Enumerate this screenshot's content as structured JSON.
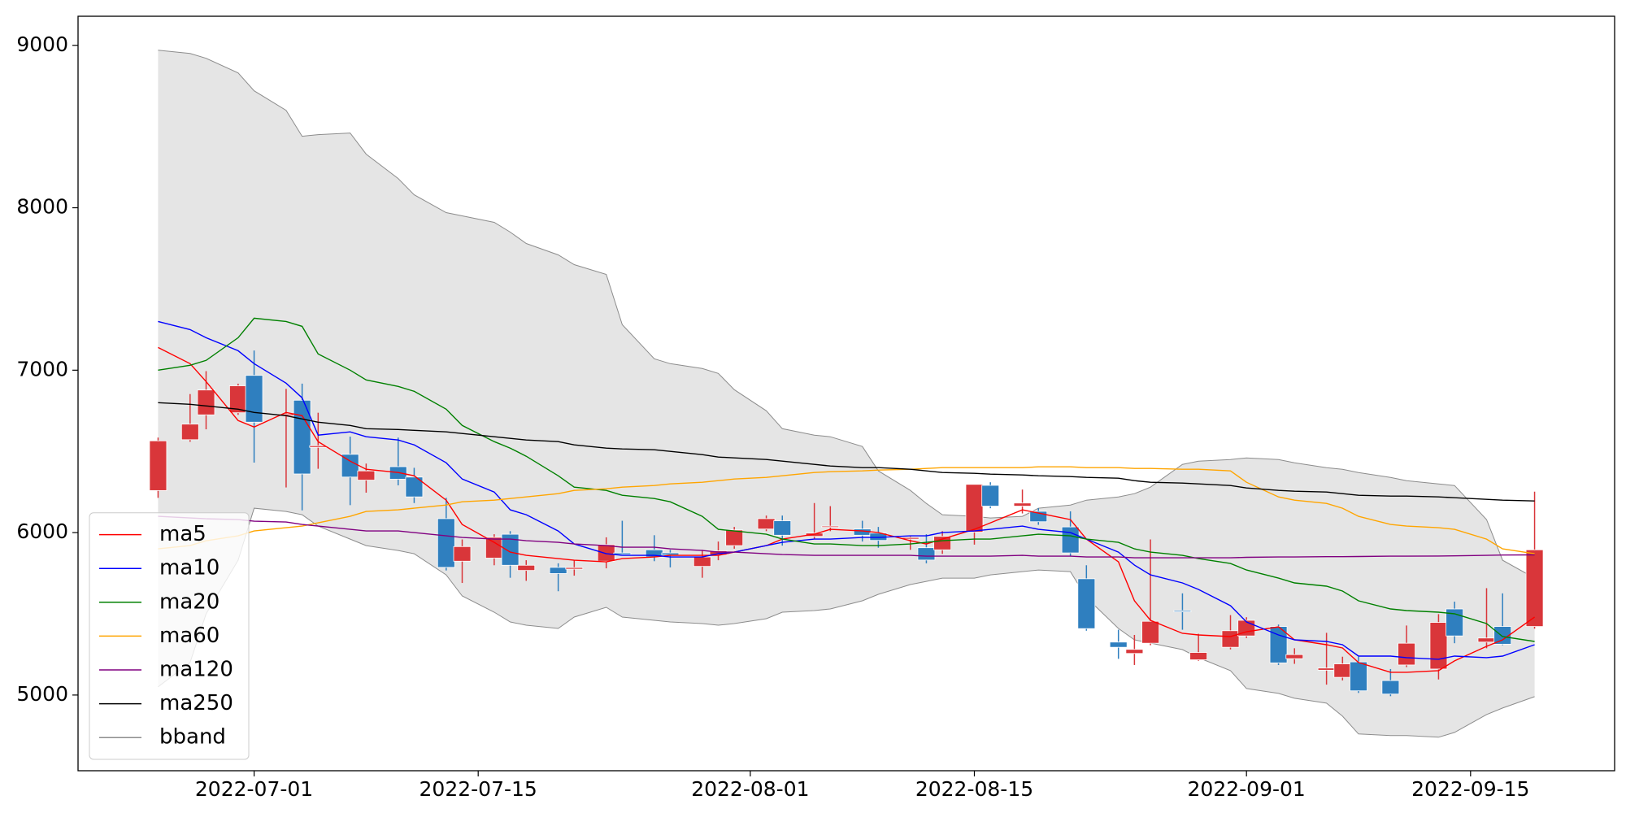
{
  "chart_data": {
    "type": "candlestick",
    "x": [
      "2022-06-25",
      "2022-06-27",
      "2022-06-28",
      "2022-06-30",
      "2022-07-01",
      "2022-07-03",
      "2022-07-04",
      "2022-07-05",
      "2022-07-07",
      "2022-07-08",
      "2022-07-10",
      "2022-07-11",
      "2022-07-13",
      "2022-07-14",
      "2022-07-16",
      "2022-07-17",
      "2022-07-18",
      "2022-07-20",
      "2022-07-21",
      "2022-07-23",
      "2022-07-24",
      "2022-07-26",
      "2022-07-27",
      "2022-07-29",
      "2022-07-30",
      "2022-07-31",
      "2022-08-02",
      "2022-08-03",
      "2022-08-05",
      "2022-08-06",
      "2022-08-08",
      "2022-08-09",
      "2022-08-11",
      "2022-08-12",
      "2022-08-13",
      "2022-08-15",
      "2022-08-16",
      "2022-08-18",
      "2022-08-19",
      "2022-08-21",
      "2022-08-22",
      "2022-08-24",
      "2022-08-25",
      "2022-08-26",
      "2022-08-28",
      "2022-08-29",
      "2022-08-31",
      "2022-09-01",
      "2022-09-03",
      "2022-09-04",
      "2022-09-06",
      "2022-09-07",
      "2022-09-08",
      "2022-09-10",
      "2022-09-11",
      "2022-09-13",
      "2022-09-14",
      "2022-09-16",
      "2022-09-17",
      "2022-09-19"
    ],
    "open": [
      6259,
      6572,
      6725,
      6738,
      6968,
      6720,
      6815,
      6525,
      6482,
      6323,
      6406,
      6342,
      6086,
      5824,
      5843,
      5990,
      5767,
      5786,
      5775,
      5824,
      5875,
      5894,
      5875,
      5792,
      5862,
      5920,
      6022,
      6073,
      5977,
      6035,
      6022,
      5997,
      5960,
      5907,
      5894,
      6003,
      6291,
      6163,
      6131,
      6035,
      5716,
      5326,
      5256,
      5319,
      5520,
      5217,
      5294,
      5364,
      5422,
      5224,
      5153,
      5109,
      5204,
      5089,
      5185,
      5160,
      5530,
      5326,
      5422,
      5422
    ],
    "high": [
      6585,
      6853,
      6994,
      6917,
      7121,
      6885,
      6917,
      6738,
      6591,
      6425,
      6585,
      6399,
      6214,
      5958,
      5990,
      6009,
      5830,
      5811,
      5830,
      5971,
      6073,
      5984,
      5894,
      5894,
      5945,
      6035,
      6105,
      6105,
      6182,
      6163,
      6073,
      6035,
      5977,
      5990,
      6009,
      6297,
      6310,
      6265,
      6150,
      6131,
      5799,
      5402,
      5370,
      5958,
      5626,
      5377,
      5492,
      5479,
      5434,
      5288,
      5383,
      5236,
      5236,
      5160,
      5428,
      5498,
      5575,
      5658,
      5626,
      6252
    ],
    "low": [
      6214,
      6559,
      6636,
      6725,
      6431,
      6278,
      6137,
      6393,
      6169,
      6246,
      6291,
      6182,
      5767,
      5690,
      5799,
      5722,
      5703,
      5639,
      5735,
      5780,
      5862,
      5824,
      5786,
      5722,
      5830,
      5901,
      6009,
      5920,
      5958,
      6009,
      5945,
      5907,
      5894,
      5811,
      5869,
      5926,
      6150,
      6118,
      6048,
      5856,
      5396,
      5223,
      5185,
      5307,
      5402,
      5211,
      5281,
      5351,
      5185,
      5192,
      5064,
      5090,
      5013,
      4993,
      5172,
      5096,
      5319,
      5288,
      5307,
      5409
    ],
    "close": [
      6565,
      6668,
      6878,
      6904,
      6680,
      6730,
      6361,
      6535,
      6342,
      6380,
      6329,
      6220,
      5786,
      5914,
      5971,
      5799,
      5799,
      5748,
      5785,
      5926,
      5865,
      5850,
      5862,
      5850,
      5888,
      6016,
      6086,
      5984,
      5997,
      6040,
      5984,
      5952,
      5970,
      5831,
      5977,
      6297,
      6163,
      6182,
      6067,
      5875,
      5409,
      5294,
      5281,
      5454,
      5517,
      5262,
      5396,
      5460,
      5198,
      5249,
      5166,
      5192,
      5026,
      5006,
      5319,
      5447,
      5364,
      5351,
      5313,
      5894
    ],
    "up_color": "#d9363a",
    "down_color": "#2f7fbf",
    "series": [
      {
        "name": "ma5",
        "color": "#ff0000",
        "values": [
          7140,
          7040,
          6930,
          6690,
          6650,
          6740,
          6720,
          6560,
          6440,
          6390,
          6370,
          6350,
          6200,
          6050,
          5940,
          5880,
          5860,
          5840,
          5830,
          5820,
          5840,
          5850,
          5860,
          5860,
          5860,
          5880,
          5920,
          5960,
          5990,
          6020,
          6010,
          6000,
          5950,
          5930,
          5960,
          6020,
          6060,
          6140,
          6120,
          6080,
          5960,
          5820,
          5580,
          5460,
          5380,
          5370,
          5360,
          5390,
          5420,
          5340,
          5310,
          5290,
          5200,
          5140,
          5140,
          5150,
          5210,
          5300,
          5340,
          5480
        ]
      },
      {
        "name": "ma10",
        "color": "#0000ff",
        "values": [
          7300,
          7250,
          7200,
          7120,
          7040,
          6920,
          6830,
          6600,
          6620,
          6590,
          6570,
          6540,
          6430,
          6330,
          6250,
          6140,
          6110,
          6010,
          5930,
          5870,
          5860,
          5860,
          5850,
          5850,
          5870,
          5880,
          5920,
          5940,
          5960,
          5960,
          5970,
          5970,
          5980,
          5980,
          6000,
          6010,
          6020,
          6040,
          6020,
          6000,
          5960,
          5880,
          5800,
          5740,
          5690,
          5650,
          5550,
          5450,
          5370,
          5340,
          5330,
          5310,
          5240,
          5240,
          5230,
          5220,
          5240,
          5230,
          5240,
          5310
        ]
      },
      {
        "name": "ma20",
        "color": "#008000",
        "values": [
          7000,
          7030,
          7060,
          7200,
          7320,
          7300,
          7270,
          7100,
          7000,
          6940,
          6900,
          6870,
          6760,
          6660,
          6560,
          6520,
          6470,
          6350,
          6280,
          6260,
          6230,
          6210,
          6190,
          6100,
          6020,
          6010,
          5990,
          5960,
          5930,
          5930,
          5920,
          5920,
          5930,
          5940,
          5950,
          5960,
          5960,
          5980,
          5990,
          5980,
          5960,
          5940,
          5900,
          5880,
          5860,
          5840,
          5810,
          5770,
          5720,
          5690,
          5670,
          5640,
          5580,
          5530,
          5520,
          5510,
          5500,
          5440,
          5360,
          5330
        ]
      },
      {
        "name": "ma60",
        "color": "#ffa500",
        "values": [
          5900,
          5920,
          5950,
          5980,
          6010,
          6030,
          6040,
          6060,
          6100,
          6130,
          6140,
          6150,
          6170,
          6190,
          6200,
          6210,
          6220,
          6240,
          6260,
          6270,
          6280,
          6290,
          6300,
          6310,
          6320,
          6330,
          6340,
          6350,
          6370,
          6375,
          6380,
          6385,
          6390,
          6395,
          6400,
          6400,
          6400,
          6400,
          6405,
          6405,
          6400,
          6400,
          6395,
          6395,
          6390,
          6390,
          6380,
          6310,
          6220,
          6200,
          6180,
          6150,
          6100,
          6050,
          6040,
          6030,
          6020,
          5960,
          5900,
          5870
        ]
      },
      {
        "name": "ma120",
        "color": "#800080",
        "values": [
          6100,
          6090,
          6085,
          6080,
          6070,
          6065,
          6050,
          6040,
          6020,
          6010,
          6010,
          6000,
          5980,
          5970,
          5960,
          5960,
          5950,
          5940,
          5930,
          5920,
          5910,
          5910,
          5900,
          5890,
          5880,
          5880,
          5870,
          5865,
          5860,
          5860,
          5860,
          5860,
          5860,
          5855,
          5855,
          5855,
          5855,
          5860,
          5855,
          5855,
          5850,
          5850,
          5845,
          5845,
          5845,
          5845,
          5845,
          5848,
          5850,
          5850,
          5852,
          5852,
          5853,
          5855,
          5855,
          5856,
          5857,
          5860,
          5862,
          5863
        ]
      },
      {
        "name": "ma250",
        "color": "#000000",
        "values": [
          6800,
          6790,
          6780,
          6760,
          6740,
          6720,
          6700,
          6680,
          6660,
          6640,
          6635,
          6630,
          6620,
          6610,
          6590,
          6580,
          6570,
          6560,
          6540,
          6520,
          6515,
          6510,
          6500,
          6480,
          6465,
          6460,
          6450,
          6440,
          6420,
          6410,
          6400,
          6400,
          6390,
          6380,
          6370,
          6365,
          6360,
          6355,
          6350,
          6345,
          6340,
          6335,
          6320,
          6310,
          6305,
          6300,
          6290,
          6275,
          6260,
          6255,
          6250,
          6240,
          6230,
          6225,
          6225,
          6220,
          6215,
          6205,
          6200,
          6195
        ]
      }
    ],
    "band": {
      "name": "bband",
      "color": "#8c8c8c",
      "fill": "#e5e5e5",
      "upper": [
        8970,
        8950,
        8920,
        8830,
        8720,
        8600,
        8440,
        8450,
        8460,
        8330,
        8180,
        8080,
        7970,
        7950,
        7910,
        7850,
        7780,
        7710,
        7650,
        7590,
        7280,
        7070,
        7040,
        7010,
        6980,
        6880,
        6750,
        6640,
        6600,
        6590,
        6530,
        6380,
        6260,
        6180,
        6110,
        6100,
        6090,
        6100,
        6150,
        6170,
        6200,
        6220,
        6240,
        6280,
        6420,
        6440,
        6450,
        6460,
        6450,
        6430,
        6400,
        6390,
        6370,
        6340,
        6320,
        6300,
        6290,
        6080,
        5830,
        5720
      ],
      "lower": [
        5050,
        5200,
        5500,
        5830,
        6150,
        6130,
        6110,
        6040,
        5960,
        5920,
        5890,
        5870,
        5740,
        5610,
        5510,
        5450,
        5430,
        5410,
        5480,
        5540,
        5480,
        5460,
        5450,
        5440,
        5430,
        5440,
        5470,
        5510,
        5520,
        5530,
        5580,
        5620,
        5680,
        5700,
        5720,
        5720,
        5740,
        5760,
        5770,
        5760,
        5600,
        5410,
        5340,
        5320,
        5280,
        5230,
        5150,
        5040,
        5010,
        4980,
        4950,
        4870,
        4760,
        4750,
        4750,
        4740,
        4770,
        4880,
        4920,
        4990
      ]
    },
    "xlim": [
      "2022-06-20",
      "2022-09-24"
    ],
    "xticks": [
      "2022-07-01",
      "2022-07-15",
      "2022-08-01",
      "2022-08-15",
      "2022-09-01",
      "2022-09-15"
    ],
    "ylim": [
      4534,
      9179
    ],
    "yticks": [
      5000,
      6000,
      7000,
      8000,
      9000
    ],
    "legend": "lower left",
    "grid": false
  }
}
